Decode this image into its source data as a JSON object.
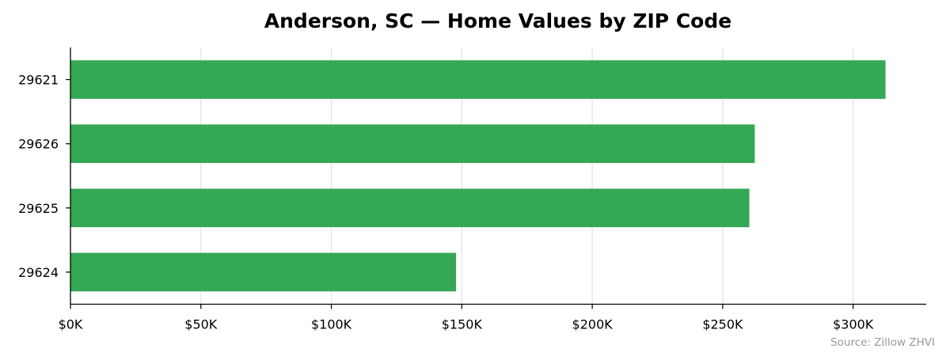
{
  "chart_data": {
    "type": "bar",
    "orientation": "horizontal",
    "title": "Anderson, SC — Home Values by ZIP Code",
    "xlabel": "",
    "ylabel": "",
    "categories": [
      "29621",
      "29626",
      "29625",
      "29624"
    ],
    "values": [
      312400,
      262300,
      260200,
      147800
    ],
    "xlim": [
      0,
      328000
    ],
    "x_ticks": [
      0,
      50000,
      100000,
      150000,
      200000,
      250000,
      300000
    ],
    "x_tick_labels": [
      "$0K",
      "$50K",
      "$100K",
      "$150K",
      "$200K",
      "$250K",
      "$300K"
    ],
    "bar_color": "#34a853",
    "grid": "vertical",
    "legend": "none",
    "source_note": "Source: Zillow ZHVI"
  }
}
